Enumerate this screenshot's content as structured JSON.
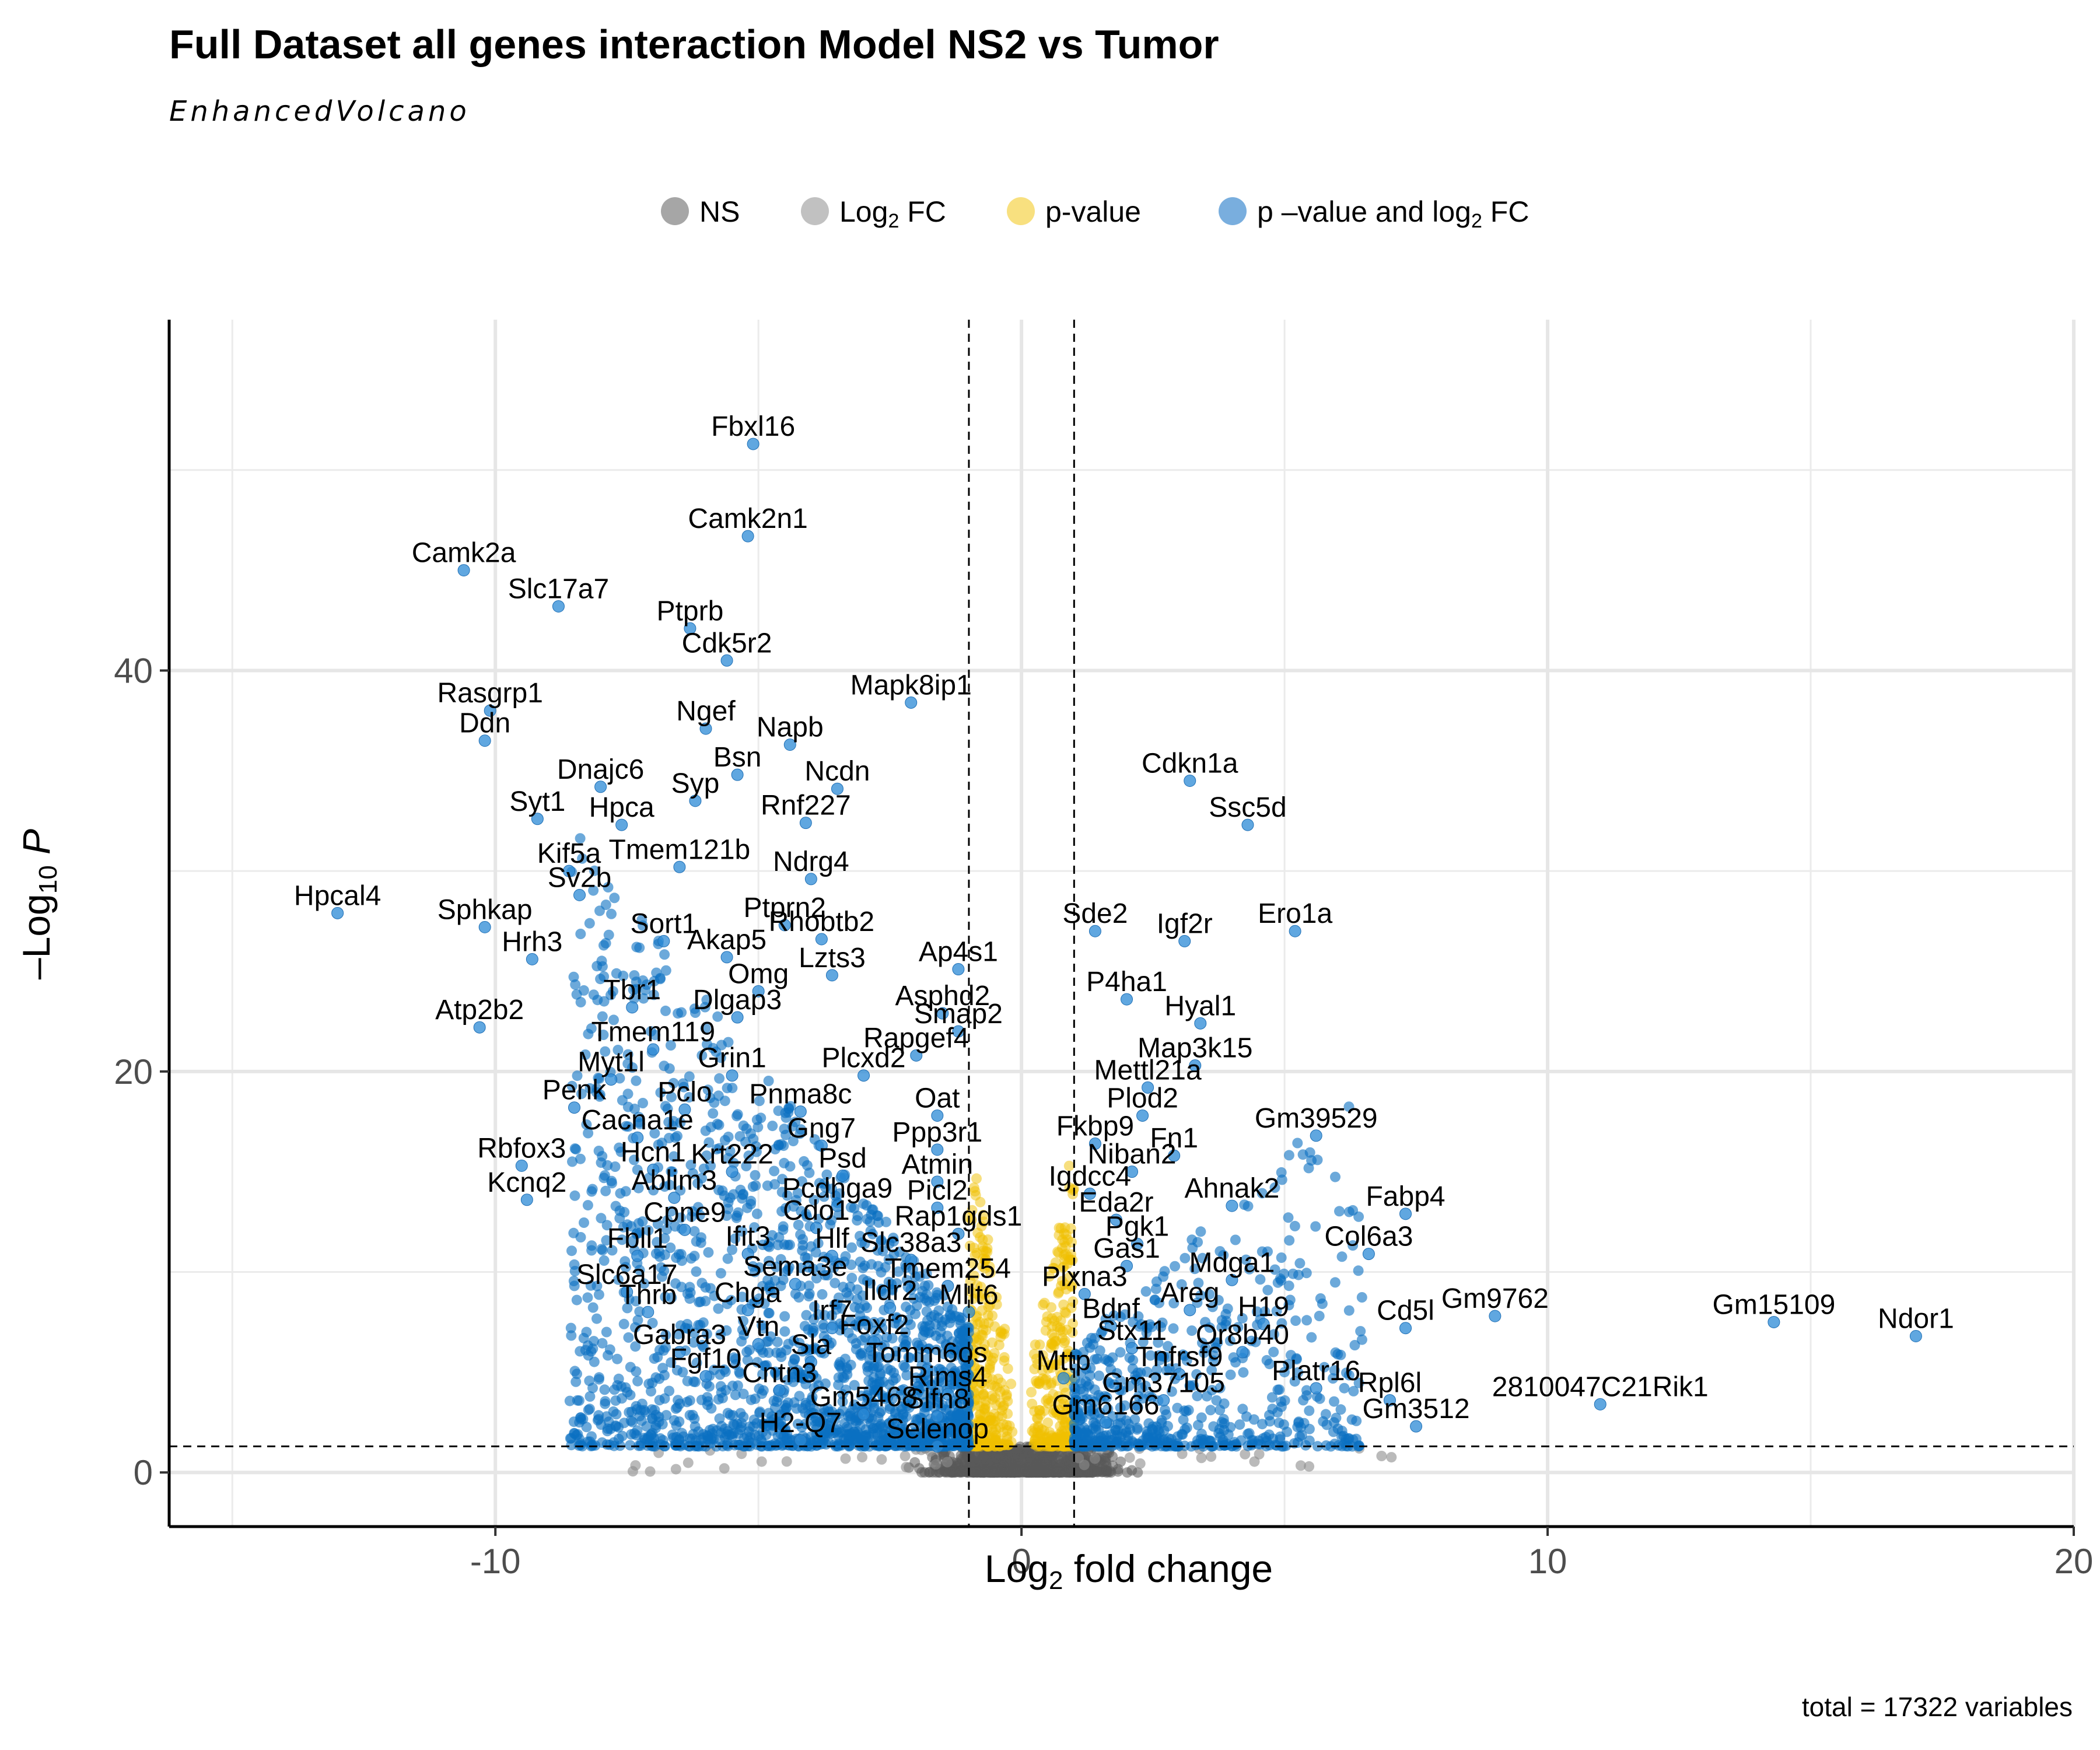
{
  "chart_data": {
    "type": "scatter",
    "title": "Full Dataset all genes interaction Model NS2 vs Tumor",
    "subtitle": "EnhancedVolcano",
    "caption": "total = 17322 variables",
    "xlabel": "Log2 fold change",
    "ylabel": "-Log10 P",
    "xlim": [
      -16.2,
      20
    ],
    "ylim": [
      -2.7,
      57.5
    ],
    "x_ticks": [
      -10,
      0,
      10,
      20
    ],
    "y_ticks": [
      0,
      20,
      40
    ],
    "grid": true,
    "fc_cutoff": 1,
    "p_cutoff_line": 1.3,
    "legend_position": "top",
    "legend": [
      {
        "name": "NS",
        "color": "#808080",
        "alpha": 0.7
      },
      {
        "name": "Log2 FC",
        "color": "#a6a6a6",
        "alpha": 0.7
      },
      {
        "name": "p-value",
        "color": "#f2c100",
        "alpha": 0.5
      },
      {
        "name": "p-value and log2 FC",
        "color": "#1f78c8",
        "alpha": 0.6
      }
    ],
    "colors": {
      "ns": "#5a5a5a",
      "p": "#f0c000",
      "both": "#0a6fc2"
    },
    "labeled_points": [
      {
        "gene": "Fbxl16",
        "x": -5.1,
        "y": 51.3
      },
      {
        "gene": "Camk2n1",
        "x": -5.2,
        "y": 46.7
      },
      {
        "gene": "Camk2a",
        "x": -10.6,
        "y": 45.0
      },
      {
        "gene": "Slc17a7",
        "x": -8.8,
        "y": 43.2
      },
      {
        "gene": "Ptprb",
        "x": -6.3,
        "y": 42.1
      },
      {
        "gene": "Cdk5r2",
        "x": -5.6,
        "y": 40.5
      },
      {
        "gene": "Rasgrp1",
        "x": -10.1,
        "y": 38.0
      },
      {
        "gene": "Ngef",
        "x": -6.0,
        "y": 37.1
      },
      {
        "gene": "Mapk8ip1",
        "x": -2.1,
        "y": 38.4
      },
      {
        "gene": "Ddn",
        "x": -10.2,
        "y": 36.5
      },
      {
        "gene": "Napb",
        "x": -4.4,
        "y": 36.3
      },
      {
        "gene": "Dnajc6",
        "x": -8.0,
        "y": 34.2
      },
      {
        "gene": "Bsn",
        "x": -5.4,
        "y": 34.8
      },
      {
        "gene": "Ncdn",
        "x": -3.5,
        "y": 34.1
      },
      {
        "gene": "Syp",
        "x": -6.2,
        "y": 33.5
      },
      {
        "gene": "Cdkn1a",
        "x": 3.2,
        "y": 34.5
      },
      {
        "gene": "Syt1",
        "x": -9.2,
        "y": 32.6
      },
      {
        "gene": "Hpca",
        "x": -7.6,
        "y": 32.3
      },
      {
        "gene": "Rnf227",
        "x": -4.1,
        "y": 32.4
      },
      {
        "gene": "Ssc5d",
        "x": 4.3,
        "y": 32.3
      },
      {
        "gene": "Tmem121b",
        "x": -6.5,
        "y": 30.2
      },
      {
        "gene": "Kif5a",
        "x": -8.6,
        "y": 30.0
      },
      {
        "gene": "Ndrg4",
        "x": -4.0,
        "y": 29.6
      },
      {
        "gene": "Sv2b",
        "x": -8.4,
        "y": 28.8
      },
      {
        "gene": "Hpcal4",
        "x": -13.0,
        "y": 27.9
      },
      {
        "gene": "Sphkap",
        "x": -10.2,
        "y": 27.2
      },
      {
        "gene": "Ptprn2",
        "x": -4.5,
        "y": 27.3
      },
      {
        "gene": "Rhobtb2",
        "x": -3.8,
        "y": 26.6
      },
      {
        "gene": "Sde2",
        "x": 1.4,
        "y": 27.0
      },
      {
        "gene": "Igf2r",
        "x": 3.1,
        "y": 26.5
      },
      {
        "gene": "Ero1a",
        "x": 5.2,
        "y": 27.0
      },
      {
        "gene": "Sort1",
        "x": -6.8,
        "y": 26.5
      },
      {
        "gene": "Akap5",
        "x": -5.6,
        "y": 25.7
      },
      {
        "gene": "Hrh3",
        "x": -9.3,
        "y": 25.6
      },
      {
        "gene": "Ap4s1",
        "x": -1.2,
        "y": 25.1
      },
      {
        "gene": "Omg",
        "x": -5.0,
        "y": 24.0
      },
      {
        "gene": "Lzts3",
        "x": -3.6,
        "y": 24.8
      },
      {
        "gene": "P4ha1",
        "x": 2.0,
        "y": 23.6
      },
      {
        "gene": "Tbr1",
        "x": -7.4,
        "y": 23.2
      },
      {
        "gene": "Asphd2",
        "x": -1.5,
        "y": 22.9
      },
      {
        "gene": "Hyal1",
        "x": 3.4,
        "y": 22.4
      },
      {
        "gene": "Atp2b2",
        "x": -10.3,
        "y": 22.2
      },
      {
        "gene": "Dlgap3",
        "x": -5.4,
        "y": 22.7
      },
      {
        "gene": "Smap2",
        "x": -1.2,
        "y": 22.0
      },
      {
        "gene": "Tmem119",
        "x": -7.0,
        "y": 21.1
      },
      {
        "gene": "Rapgef4",
        "x": -2.0,
        "y": 20.8
      },
      {
        "gene": "Map3k15",
        "x": 3.3,
        "y": 20.3
      },
      {
        "gene": "Grin1",
        "x": -5.5,
        "y": 19.8
      },
      {
        "gene": "Myt1l",
        "x": -7.8,
        "y": 19.6
      },
      {
        "gene": "Plcxd2",
        "x": -3.0,
        "y": 19.8
      },
      {
        "gene": "Mettl21a",
        "x": 2.4,
        "y": 19.2
      },
      {
        "gene": "Penk",
        "x": -8.5,
        "y": 18.2
      },
      {
        "gene": "Pclo",
        "x": -6.4,
        "y": 18.1
      },
      {
        "gene": "Pnma8c",
        "x": -4.2,
        "y": 18.0
      },
      {
        "gene": "Oat",
        "x": -1.6,
        "y": 17.8
      },
      {
        "gene": "Plod2",
        "x": 2.3,
        "y": 17.8
      },
      {
        "gene": "Gm39529",
        "x": 5.6,
        "y": 16.8
      },
      {
        "gene": "Cacna1e",
        "x": -7.3,
        "y": 16.7
      },
      {
        "gene": "Gng7",
        "x": -3.8,
        "y": 16.3
      },
      {
        "gene": "Ppp3r1",
        "x": -1.6,
        "y": 16.1
      },
      {
        "gene": "Fkbp9",
        "x": 1.4,
        "y": 16.4
      },
      {
        "gene": "Fn1",
        "x": 2.9,
        "y": 15.8
      },
      {
        "gene": "Rbfox3",
        "x": -9.5,
        "y": 15.3
      },
      {
        "gene": "Hcn1",
        "x": -7.0,
        "y": 15.1
      },
      {
        "gene": "Krt222",
        "x": -5.5,
        "y": 15.0
      },
      {
        "gene": "Psd",
        "x": -3.4,
        "y": 14.8
      },
      {
        "gene": "Niban2",
        "x": 2.1,
        "y": 15.0
      },
      {
        "gene": "Atmin",
        "x": -1.6,
        "y": 14.5
      },
      {
        "gene": "Kcnq2",
        "x": -9.4,
        "y": 13.6
      },
      {
        "gene": "Ablim3",
        "x": -6.6,
        "y": 13.7
      },
      {
        "gene": "Igdcc4",
        "x": 1.3,
        "y": 13.9
      },
      {
        "gene": "Ahnak2",
        "x": 4.0,
        "y": 13.3
      },
      {
        "gene": "Pcdhga9",
        "x": -3.5,
        "y": 13.3
      },
      {
        "gene": "Picl2",
        "x": -1.6,
        "y": 13.2
      },
      {
        "gene": "Fabp4",
        "x": 7.3,
        "y": 12.9
      },
      {
        "gene": "Eda2r",
        "x": 1.8,
        "y": 12.6
      },
      {
        "gene": "Cpne9",
        "x": -6.4,
        "y": 12.1
      },
      {
        "gene": "Cdo1",
        "x": -3.9,
        "y": 12.2
      },
      {
        "gene": "Rap1gds1",
        "x": -1.2,
        "y": 11.9
      },
      {
        "gene": "Pgk1",
        "x": 2.2,
        "y": 11.4
      },
      {
        "gene": "Fbll1",
        "x": -7.3,
        "y": 10.8
      },
      {
        "gene": "Ifit3",
        "x": -5.2,
        "y": 10.9
      },
      {
        "gene": "Hlf",
        "x": -3.6,
        "y": 10.8
      },
      {
        "gene": "Slc38a3",
        "x": -2.1,
        "y": 10.6
      },
      {
        "gene": "Col6a3",
        "x": 6.6,
        "y": 10.9
      },
      {
        "gene": "Gas1",
        "x": 2.0,
        "y": 10.3
      },
      {
        "gene": "Tmem254",
        "x": -1.4,
        "y": 9.3
      },
      {
        "gene": "Sema3e",
        "x": -4.3,
        "y": 9.4
      },
      {
        "gene": "Mdga1",
        "x": 4.0,
        "y": 9.6
      },
      {
        "gene": "Slc6a17",
        "x": -7.5,
        "y": 9.0
      },
      {
        "gene": "Plxna3",
        "x": 1.2,
        "y": 8.9
      },
      {
        "gene": "Chga",
        "x": -5.2,
        "y": 8.1
      },
      {
        "gene": "Ildr2",
        "x": -2.5,
        "y": 8.2
      },
      {
        "gene": "Mllt6",
        "x": -1.0,
        "y": 8.0
      },
      {
        "gene": "Thrb",
        "x": -7.1,
        "y": 8.0
      },
      {
        "gene": "Areg",
        "x": 3.2,
        "y": 8.1
      },
      {
        "gene": "Gm15109",
        "x": 14.3,
        "y": 7.5
      },
      {
        "gene": "Gm9762",
        "x": 9.0,
        "y": 7.8
      },
      {
        "gene": "Ndor1",
        "x": 17.0,
        "y": 6.8
      },
      {
        "gene": "Irf7",
        "x": -3.6,
        "y": 7.2
      },
      {
        "gene": "Bdnf",
        "x": 1.7,
        "y": 7.3
      },
      {
        "gene": "H19",
        "x": 4.6,
        "y": 7.4
      },
      {
        "gene": "Cd5l",
        "x": 7.3,
        "y": 7.2
      },
      {
        "gene": "Vtn",
        "x": -5.0,
        "y": 6.4
      },
      {
        "gene": "Foxf2",
        "x": -2.8,
        "y": 6.5
      },
      {
        "gene": "Gabra3",
        "x": -6.5,
        "y": 6.0
      },
      {
        "gene": "Stx11",
        "x": 2.1,
        "y": 6.2
      },
      {
        "gene": "Or8b40",
        "x": 4.2,
        "y": 6.0
      },
      {
        "gene": "Sla",
        "x": -4.0,
        "y": 5.5
      },
      {
        "gene": "Tomm6os",
        "x": -1.8,
        "y": 5.1
      },
      {
        "gene": "Fgf10",
        "x": -6.0,
        "y": 4.8
      },
      {
        "gene": "Mttp",
        "x": 0.8,
        "y": 4.7
      },
      {
        "gene": "Tnfrsf9",
        "x": 3.0,
        "y": 4.9
      },
      {
        "gene": "Cntn3",
        "x": -4.6,
        "y": 4.1
      },
      {
        "gene": "Rims4",
        "x": -1.4,
        "y": 3.9
      },
      {
        "gene": "Platr16",
        "x": 5.6,
        "y": 4.2
      },
      {
        "gene": "Gm37105",
        "x": 2.7,
        "y": 3.6
      },
      {
        "gene": "Rpl6l",
        "x": 7.0,
        "y": 3.6
      },
      {
        "gene": "2810047C21Rik1",
        "x": 11.0,
        "y": 3.4
      },
      {
        "gene": "Gm5468",
        "x": -3.0,
        "y": 2.9
      },
      {
        "gene": "Slfn8",
        "x": -1.6,
        "y": 2.8
      },
      {
        "gene": "Gm6166",
        "x": 1.6,
        "y": 2.5
      },
      {
        "gene": "Gm3512",
        "x": 7.5,
        "y": 2.3
      },
      {
        "gene": "H2-Q7",
        "x": -4.2,
        "y": 1.6
      },
      {
        "gene": "Selenop",
        "x": -1.6,
        "y": 1.3
      }
    ]
  }
}
